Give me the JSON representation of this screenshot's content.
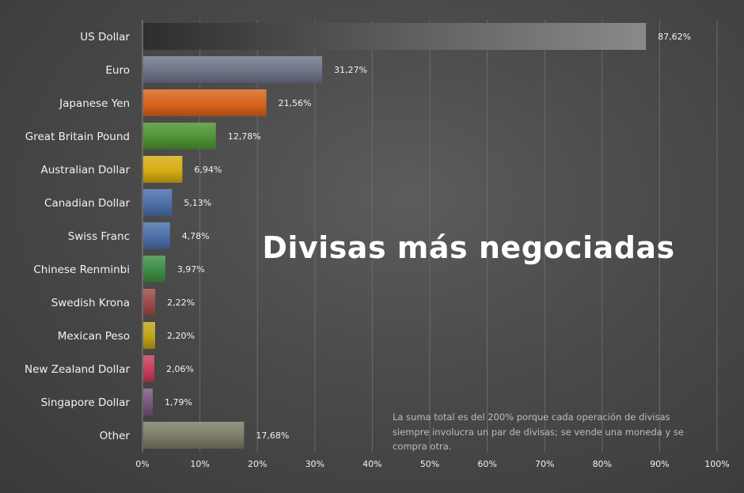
{
  "chart_data": {
    "type": "bar",
    "orientation": "horizontal",
    "title": "Divisas más negociadas",
    "xlabel": "",
    "ylabel": "",
    "categories": [
      "US Dollar",
      "Euro",
      "Japanese Yen",
      "Great Britain Pound",
      "Australian Dollar",
      "Canadian Dollar",
      "Swiss Franc",
      "Chinese Renminbi",
      "Swedish Krona",
      "Mexican Peso",
      "New Zealand Dollar",
      "Singapore Dollar",
      "Other"
    ],
    "values": [
      87.62,
      31.27,
      21.56,
      12.78,
      6.94,
      5.13,
      4.78,
      3.97,
      2.22,
      2.2,
      2.06,
      1.79,
      17.68
    ],
    "value_labels": [
      "87,62%",
      "31,27%",
      "21,56%",
      "12,78%",
      "6,94%",
      "5,13%",
      "4,78%",
      "3,97%",
      "2,22%",
      "2,20%",
      "2,06%",
      "1,79%",
      "17,68%"
    ],
    "bar_colors": [
      "#3c3c3c",
      "#6f7488",
      "#d9641c",
      "#4f9336",
      "#d6ad12",
      "#4d6ea8",
      "#4d6ea8",
      "#3f8d46",
      "#9c4a48",
      "#bfa417",
      "#c53e5c",
      "#7a557f",
      "#7c7c68"
    ],
    "xlim": [
      0,
      100
    ],
    "xticks": [
      0,
      10,
      20,
      30,
      40,
      50,
      60,
      70,
      80,
      90,
      100
    ],
    "xtick_labels": [
      "0%",
      "10%",
      "20%",
      "30%",
      "40%",
      "50%",
      "60%",
      "70%",
      "80%",
      "90%",
      "100%"
    ],
    "grid": true,
    "note": [
      "La suma total es del 200% porque cada operación de divisas",
      "siempre involucra un par de divisas; se vende una moneda y se",
      "compra otra."
    ]
  }
}
